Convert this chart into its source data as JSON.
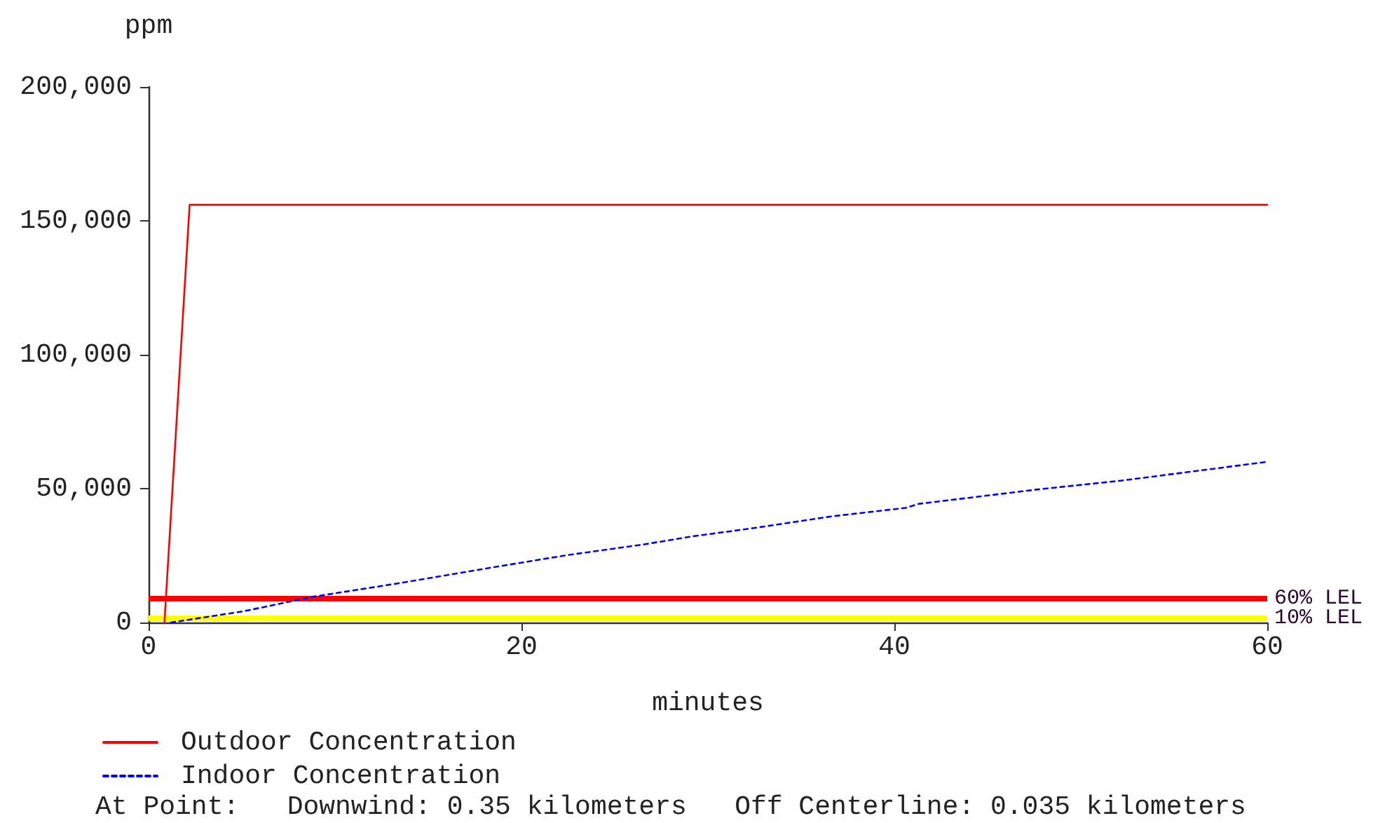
{
  "chart_data": {
    "type": "line",
    "xlabel": "minutes",
    "ylabel": "ppm",
    "xlim": [
      0,
      60
    ],
    "xticks": [
      0,
      20,
      40,
      60
    ],
    "ylim": [
      0,
      200000
    ],
    "yticks": [
      0,
      {
        "value": 50000,
        "label": "50,000"
      },
      {
        "value": 100000,
        "label": "100,000"
      },
      {
        "value": 150000,
        "label": "150,000"
      },
      {
        "value": 200000,
        "label": "200,000"
      }
    ],
    "series": [
      {
        "name": "Outdoor Concentration",
        "color": "#ff0000",
        "line_style": "solid",
        "x": [
          0.85,
          2.2,
          60
        ],
        "values": [
          0,
          156000,
          156000
        ]
      },
      {
        "name": "Indoor Concentration",
        "color": "#0000ff",
        "line_style": "dotted",
        "x": [
          1.2,
          5.1,
          8.8,
          13.1,
          18.3,
          22.4,
          26.6,
          29.1,
          32.4,
          36.6,
          40.6,
          41.3,
          47.7,
          52.2,
          60
        ],
        "values": [
          0,
          4200,
          9600,
          14300,
          20400,
          25100,
          29200,
          32100,
          35200,
          39600,
          42800,
          44300,
          49700,
          53000,
          60000
        ]
      }
    ],
    "ref_lines": [
      {
        "axis": "y",
        "value": 9000,
        "label": "60% LEL",
        "color": "#ff0000"
      },
      {
        "axis": "y",
        "value": 1500,
        "label": "10% LEL",
        "color": "#ffff00"
      }
    ],
    "legend": "bottom",
    "grid": false,
    "marker": "none",
    "annotations": [
      "At Point:   Downwind: 0.35 kilometers   Off Centerline: 0.035 kilometers"
    ]
  }
}
